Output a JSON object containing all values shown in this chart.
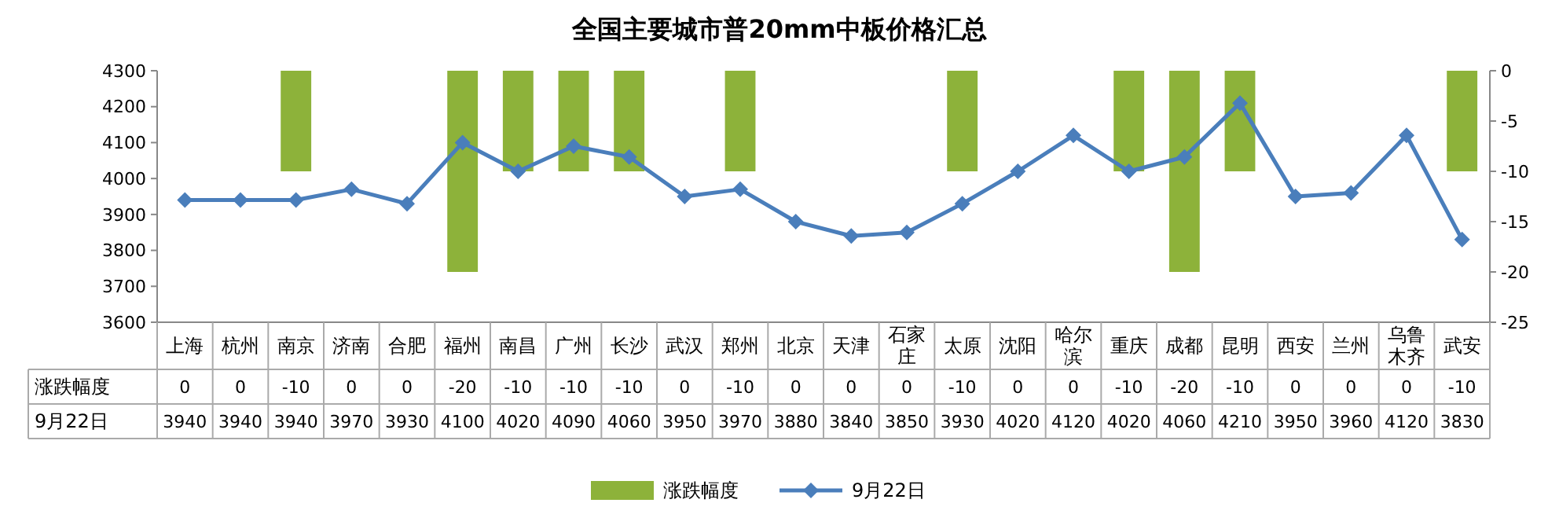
{
  "chart_data": {
    "type": "bar",
    "title": "全国主要城市普20mm中板价格汇总",
    "categories": [
      "上海",
      "杭州",
      "南京",
      "济南",
      "合肥",
      "福州",
      "南昌",
      "广州",
      "长沙",
      "武汉",
      "郑州",
      "北京",
      "天津",
      "石家庄",
      "太原",
      "沈阳",
      "哈尔滨",
      "重庆",
      "成都",
      "昆明",
      "西安",
      "兰州",
      "乌鲁木齐",
      "武安"
    ],
    "series": [
      {
        "name": "涨跌幅度",
        "axis": "y2",
        "color": "#8db23a",
        "values": [
          0,
          0,
          -10,
          0,
          0,
          -20,
          -10,
          -10,
          -10,
          0,
          -10,
          0,
          0,
          0,
          -10,
          0,
          0,
          -10,
          -20,
          -10,
          0,
          0,
          0,
          -10
        ]
      },
      {
        "name": "9月22日",
        "type": "line",
        "color": "#4a7ebb",
        "values": [
          3940,
          3940,
          3940,
          3970,
          3930,
          4100,
          4020,
          4090,
          4060,
          3950,
          3970,
          3880,
          3840,
          3850,
          3930,
          4020,
          4120,
          4020,
          4060,
          4210,
          3950,
          3960,
          4120,
          3830
        ]
      }
    ],
    "ylim": [
      3600,
      4300
    ],
    "yticks": [
      3600,
      3700,
      3800,
      3900,
      4000,
      4100,
      4200,
      4300
    ],
    "y2lim": [
      -25,
      0
    ],
    "y2ticks": [
      -25,
      -20,
      -15,
      -10,
      -5,
      0
    ],
    "data_labels": true,
    "legend": "bottom",
    "marker": "diamond",
    "line_style": "solid"
  }
}
